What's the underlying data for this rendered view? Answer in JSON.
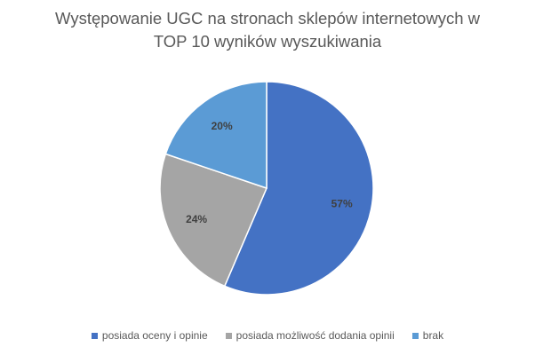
{
  "chart_data": {
    "type": "pie",
    "title_lines": [
      "Występowanie UGC na stronach sklepów internetowych w",
      "TOP 10 wyników wyszukiwania"
    ],
    "categories": [
      "posiada oceny i opinie",
      "posiada możliwość dodania opinii",
      "brak"
    ],
    "values": [
      57,
      24,
      20
    ],
    "data_labels": [
      "57%",
      "24%",
      "20%"
    ],
    "colors": [
      "#4472C4",
      "#A5A5A5",
      "#5B9BD5"
    ],
    "start_angle_deg": 0,
    "direction": "clockwise",
    "legend_position": "bottom"
  }
}
